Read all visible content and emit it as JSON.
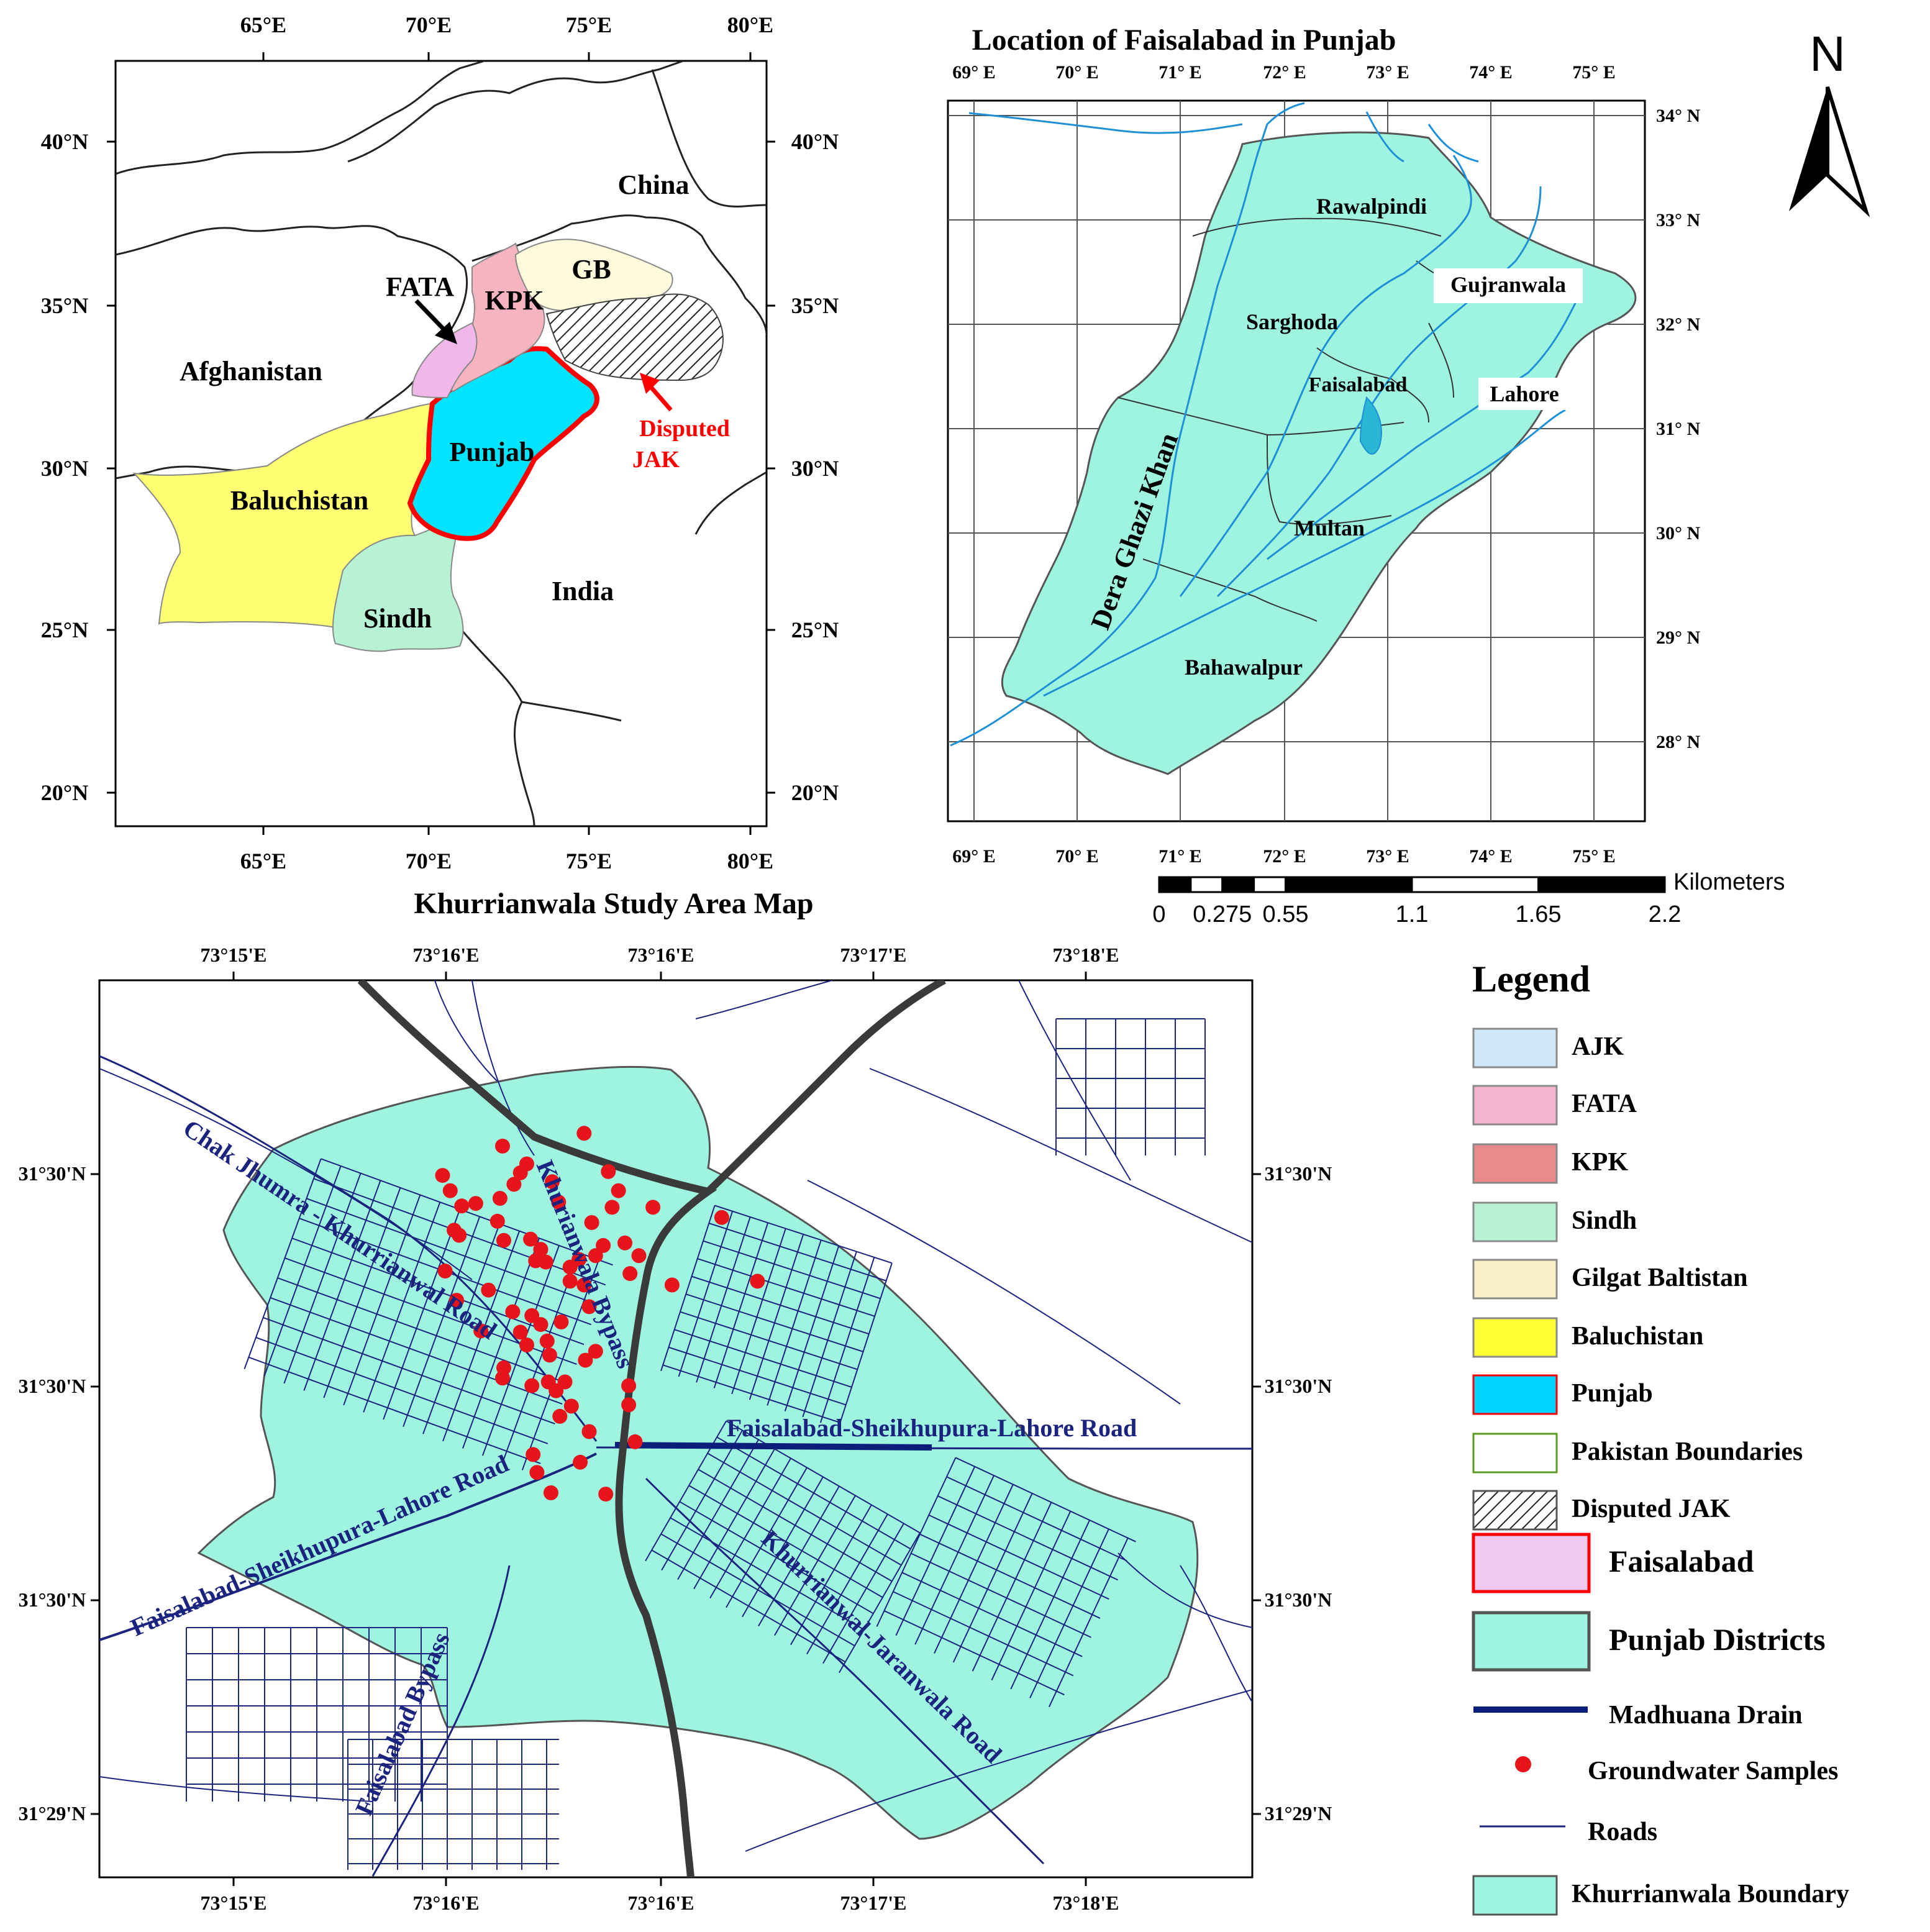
{
  "map1": {
    "top_ticks": [
      "65°E",
      "70°E",
      "75°E",
      "80°E"
    ],
    "bottom_ticks": [
      "65°E",
      "70°E",
      "75°E",
      "80°E"
    ],
    "left_ticks": [
      "40°N",
      "35°N",
      "30°N",
      "25°N",
      "20°N"
    ],
    "right_ticks": [
      "40°N",
      "35°N",
      "30°N",
      "25°N",
      "20°N"
    ],
    "labels": {
      "china": "China",
      "afghanistan": "Afghanistan",
      "india": "India",
      "fata": "FATA",
      "kpk": "KPK",
      "gb": "GB",
      "punjab": "Punjab",
      "baluchistan": "Baluchistan",
      "sindh": "Sindh",
      "disputed_1": "Disputed",
      "disputed_2": "JAK"
    },
    "colors": {
      "punjab": "#00e4ff",
      "punjab_border": "#ff0000",
      "baluchistan": "#ffff73",
      "sindh": "#b8f2d4",
      "kpk": "#f5b4c0",
      "fata": "#f0b8e8",
      "gb": "#fffadc"
    }
  },
  "map2": {
    "title": "Location of Faisalabad in Punjab",
    "top_ticks": [
      "69° E",
      "70° E",
      "71° E",
      "72° E",
      "73° E",
      "74° E",
      "75° E"
    ],
    "bottom_ticks": [
      "69° E",
      "70° E",
      "71° E",
      "72° E",
      "73° E",
      "74° E",
      "75° E"
    ],
    "right_ticks": [
      "34° N",
      "33° N",
      "32° N",
      "31° N",
      "30° N",
      "29° N",
      "28° N"
    ],
    "districts": {
      "rawalpindi": "Rawalpindi",
      "gujranwala": "Gujranwala",
      "sarghoda": "Sarghoda",
      "faisalabad": "Faisalabad",
      "lahore": "Lahore",
      "multan": "Multan",
      "dera_ghazi_khan": "Dera Ghazi Khan",
      "bahawalpur": "Bahawalpur"
    },
    "fill_color": "#9ff4e0"
  },
  "north_arrow": {
    "label": "N"
  },
  "scalebar": {
    "unit": "Kilometers",
    "ticks": [
      "0",
      "0.275",
      "0.55",
      "1.1",
      "1.65",
      "2.2"
    ]
  },
  "map3": {
    "title": "Khurrianwala Study Area Map",
    "top_ticks": [
      "73°15'E",
      "73°16'E",
      "73°16'E",
      "73°17'E",
      "73°18'E"
    ],
    "bottom_ticks": [
      "73°15'E",
      "73°16'E",
      "73°16'E",
      "73°17'E",
      "73°18'E"
    ],
    "left_ticks": [
      "31°30'N",
      "31°30'N",
      "31°30'N",
      "31°29'N"
    ],
    "right_ticks": [
      "31°30'N",
      "31°30'N",
      "31°30'N",
      "31°29'N"
    ],
    "roads": {
      "chak_jhumra": "Chak Jhumra - Khurrianwal Road",
      "khurianwala_bypass": "Khurianwala Bypass",
      "fsl_lahore_east": "Faisalabad-Sheikhupura-Lahore Road",
      "fsl_lahore_west": "Faisalabad-Sheikhupura-Lahore Road",
      "faisalabad_bypass": "Faisalabad Bypass",
      "khurrianwal_jaranwala": "Khurrianwal-Jaranwala Road"
    },
    "boundary_color": "#9ff4e0",
    "sample_color": "#e8141c",
    "drain_color": "#0b1e7a",
    "road_color": "#1a237e"
  },
  "legend": {
    "title": "Legend",
    "items": [
      {
        "label": "AJK",
        "fill": "#cfe8f8",
        "border": "#8a8a8a",
        "kind": "box"
      },
      {
        "label": "FATA",
        "fill": "#f7b6cf",
        "border": "#8a8a8a",
        "kind": "box"
      },
      {
        "label": "KPK",
        "fill": "#ea8a8a",
        "border": "#8a8a8a",
        "kind": "box"
      },
      {
        "label": "Sindh",
        "fill": "#b8f2d4",
        "border": "#8a8a8a",
        "kind": "box"
      },
      {
        "label": "Gilgat Baltistan",
        "fill": "#fbf0c8",
        "border": "#8a8a8a",
        "kind": "box"
      },
      {
        "label": "Baluchistan",
        "fill": "#ffff33",
        "border": "#8a8a8a",
        "kind": "box"
      },
      {
        "label": "Punjab",
        "fill": "#00d4ff",
        "border": "#ff0000",
        "kind": "box"
      },
      {
        "label": "Pakistan Boundaries",
        "fill": "#ffffff",
        "border": "#5b9a1e",
        "kind": "box"
      },
      {
        "label": "Disputed JAK",
        "fill": "#ffffff",
        "border": "#555555",
        "kind": "hatch"
      },
      {
        "label": "Faisalabad",
        "fill": "#f0c8f0",
        "border": "#ff0000",
        "kind": "bigbox"
      },
      {
        "label": "Punjab Districts",
        "fill": "#9ff4e0",
        "border": "#555555",
        "kind": "bigbox"
      },
      {
        "label": "Madhuana Drain",
        "fill": "",
        "border": "#0b1e7a",
        "kind": "thickline"
      },
      {
        "label": "Groundwater Samples",
        "fill": "#e8141c",
        "border": "",
        "kind": "dot"
      },
      {
        "label": "Roads",
        "fill": "",
        "border": "#1a237e",
        "kind": "thinline"
      },
      {
        "label": "Khurrianwala Boundary",
        "fill": "#9ff4e0",
        "border": "#555555",
        "kind": "box"
      }
    ]
  },
  "samples": [
    [
      31.5282,
      73.2775
    ],
    [
      31.5272,
      73.2711
    ],
    [
      31.5258,
      73.273
    ],
    [
      31.5249,
      73.2664
    ],
    [
      31.5251,
      73.2725
    ],
    [
      31.5242,
      73.272
    ],
    [
      31.5237,
      73.267
    ],
    [
      31.5244,
      73.275
    ],
    [
      31.5252,
      73.2794
    ],
    [
      31.5237,
      73.2802
    ],
    [
      31.5231,
      73.2709
    ],
    [
      31.5227,
      73.269
    ],
    [
      31.5225,
      73.2679
    ],
    [
      31.5228,
      73.2755
    ],
    [
      31.5224,
      73.2797
    ],
    [
      31.5224,
      73.2829
    ],
    [
      31.5216,
      73.2883
    ],
    [
      31.5212,
      73.2781
    ],
    [
      31.5213,
      73.2707
    ],
    [
      31.5206,
      73.2673
    ],
    [
      31.5202,
      73.2677
    ],
    [
      31.5198,
      73.2712
    ],
    [
      31.5199,
      73.2733
    ],
    [
      31.5191,
      73.2741
    ],
    [
      31.5194,
      73.279
    ],
    [
      31.5196,
      73.2807
    ],
    [
      31.5186,
      73.2784
    ],
    [
      31.5186,
      73.2818
    ],
    [
      31.5183,
      73.2771
    ],
    [
      31.5182,
      73.2737
    ],
    [
      31.5181,
      73.2745
    ],
    [
      31.5177,
      73.2764
    ],
    [
      31.5174,
      73.2666
    ],
    [
      31.5166,
      73.2764
    ],
    [
      31.5163,
      73.2775
    ],
    [
      31.5172,
      73.2811
    ],
    [
      31.5163,
      73.2844
    ],
    [
      31.5166,
      73.2911
    ],
    [
      31.5159,
      73.27
    ],
    [
      31.5151,
      73.2675
    ],
    [
      31.5146,
      73.2779
    ],
    [
      31.5142,
      73.2719
    ],
    [
      31.5139,
      73.2734
    ],
    [
      31.5134,
      73.2757
    ],
    [
      31.5132,
      73.2741
    ],
    [
      31.5126,
      73.2725
    ],
    [
      31.5116,
      73.273
    ],
    [
      31.5127,
      73.2694
    ],
    [
      31.5119,
      73.2746
    ],
    [
      31.5111,
      73.2784
    ],
    [
      31.5108,
      73.2748
    ],
    [
      31.5104,
      73.2776
    ],
    [
      31.5098,
      73.2712
    ],
    [
      31.509,
      73.2711
    ],
    [
      31.5084,
      73.2734
    ],
    [
      31.5087,
      73.2747
    ],
    [
      31.508,
      73.2753
    ],
    [
      31.5087,
      73.276
    ],
    [
      31.5084,
      73.281
    ],
    [
      31.5068,
      73.2765
    ],
    [
      31.5069,
      73.281
    ],
    [
      31.506,
      73.2756
    ],
    [
      31.5048,
      73.2779
    ],
    [
      31.504,
      73.2815
    ],
    [
      31.503,
      73.2735
    ],
    [
      31.5024,
      73.2772
    ],
    [
      31.5016,
      73.2738
    ],
    [
      31.5,
      73.2749
    ],
    [
      31.4999,
      73.2792
    ]
  ]
}
